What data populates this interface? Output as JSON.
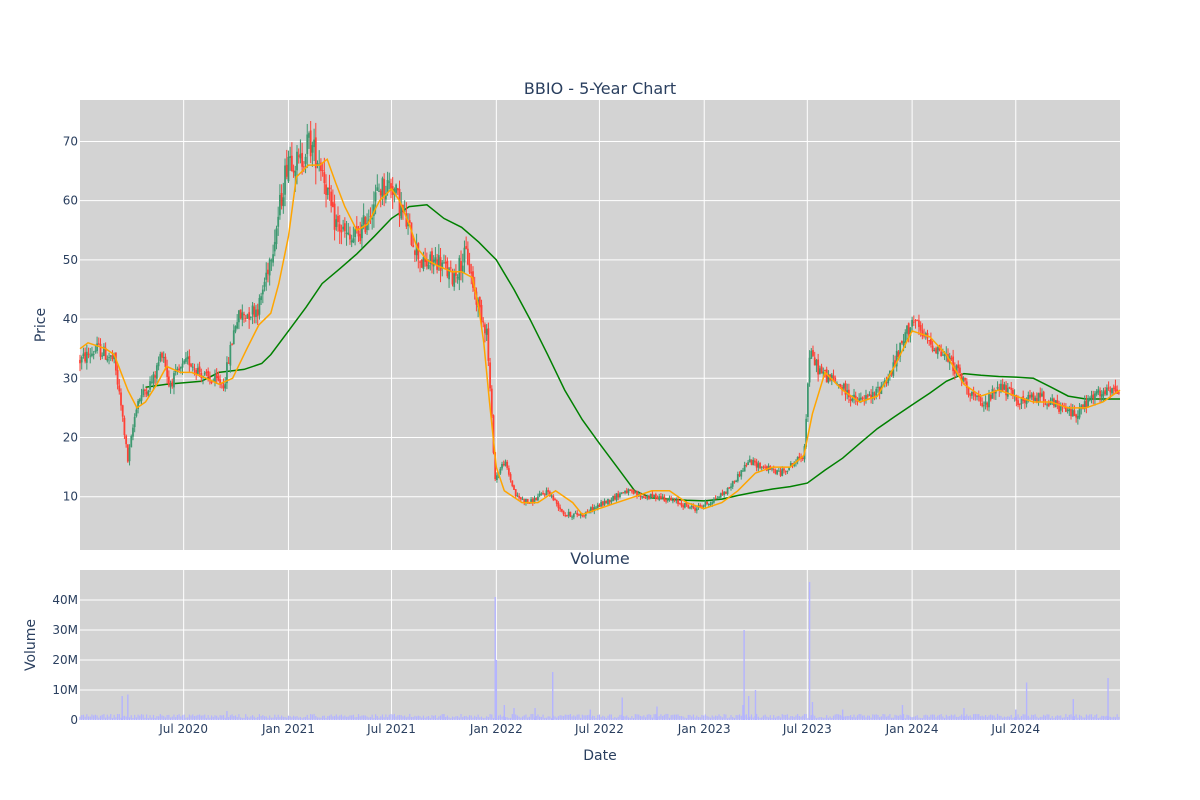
{
  "chart_data": [
    {
      "type": "candlestick",
      "title": "BBIO - 5-Year Chart",
      "xlabel": "",
      "ylabel": "Price",
      "ylim": [
        1,
        77
      ],
      "yticks": [
        10,
        20,
        30,
        40,
        50,
        60,
        70
      ],
      "grid": true,
      "legend": "none",
      "colors": {
        "background": "#d3d3d3",
        "grid": "#ffffff",
        "up": "#3d9970",
        "down": "#ff4136",
        "ma_short": "#ffa500",
        "ma_long": "#008000"
      },
      "date_range": [
        "2020-01-01",
        "2024-12-31"
      ],
      "price_path": [
        [
          "2020-01-01",
          33
        ],
        [
          "2020-02-01",
          35
        ],
        [
          "2020-03-01",
          33
        ],
        [
          "2020-03-15",
          24
        ],
        [
          "2020-03-25",
          16
        ],
        [
          "2020-04-10",
          26
        ],
        [
          "2020-05-10",
          30
        ],
        [
          "2020-05-25",
          35
        ],
        [
          "2020-06-05",
          29
        ],
        [
          "2020-07-10",
          33
        ],
        [
          "2020-08-10",
          30
        ],
        [
          "2020-09-10",
          29
        ],
        [
          "2020-10-01",
          40
        ],
        [
          "2020-11-10",
          42
        ],
        [
          "2020-12-10",
          55
        ],
        [
          "2021-01-01",
          68
        ],
        [
          "2021-01-20",
          66
        ],
        [
          "2021-02-05",
          70
        ],
        [
          "2021-03-01",
          66
        ],
        [
          "2021-03-20",
          57
        ],
        [
          "2021-04-20",
          53
        ],
        [
          "2021-05-10",
          55
        ],
        [
          "2021-06-10",
          62
        ],
        [
          "2021-07-01",
          63
        ],
        [
          "2021-07-20",
          58
        ],
        [
          "2021-08-05",
          54
        ],
        [
          "2021-08-25",
          49
        ],
        [
          "2021-09-20",
          50
        ],
        [
          "2021-10-15",
          47
        ],
        [
          "2021-11-10",
          51
        ],
        [
          "2021-11-25",
          44
        ],
        [
          "2021-12-15",
          38
        ],
        [
          "2021-12-30",
          13
        ],
        [
          "2022-01-15",
          16
        ],
        [
          "2022-02-05",
          10
        ],
        [
          "2022-03-01",
          9
        ],
        [
          "2022-04-01",
          11
        ],
        [
          "2022-05-01",
          7
        ],
        [
          "2022-06-01",
          7
        ],
        [
          "2022-07-10",
          9
        ],
        [
          "2022-08-15",
          11
        ],
        [
          "2022-09-15",
          10
        ],
        [
          "2022-10-15",
          10
        ],
        [
          "2022-11-15",
          9
        ],
        [
          "2022-12-15",
          8
        ],
        [
          "2023-01-10",
          9
        ],
        [
          "2023-02-10",
          11
        ],
        [
          "2023-03-20",
          16
        ],
        [
          "2023-04-15",
          15
        ],
        [
          "2023-05-15",
          14
        ],
        [
          "2023-06-25",
          17
        ],
        [
          "2023-07-05",
          34
        ],
        [
          "2023-07-25",
          31
        ],
        [
          "2023-08-25",
          29
        ],
        [
          "2023-09-25",
          26
        ],
        [
          "2023-10-25",
          27
        ],
        [
          "2023-11-25",
          31
        ],
        [
          "2024-01-01",
          40
        ],
        [
          "2024-01-20",
          37
        ],
        [
          "2024-02-15",
          35
        ],
        [
          "2024-03-15",
          32
        ],
        [
          "2024-04-10",
          28
        ],
        [
          "2024-05-05",
          25
        ],
        [
          "2024-06-01",
          29
        ],
        [
          "2024-06-25",
          27
        ],
        [
          "2024-07-10",
          26
        ],
        [
          "2024-08-15",
          27
        ],
        [
          "2024-09-15",
          25
        ],
        [
          "2024-10-15",
          24
        ],
        [
          "2024-11-15",
          27
        ],
        [
          "2024-12-31",
          28
        ]
      ],
      "series": [
        {
          "name": "",
          "type": "line",
          "color": "#ffa500",
          "points": [
            [
              "2020-01-01",
              35
            ],
            [
              "2020-01-15",
              36
            ],
            [
              "2020-02-15",
              35
            ],
            [
              "2020-03-01",
              34
            ],
            [
              "2020-03-25",
              28
            ],
            [
              "2020-04-10",
              25
            ],
            [
              "2020-04-25",
              26
            ],
            [
              "2020-05-15",
              29
            ],
            [
              "2020-06-01",
              32
            ],
            [
              "2020-06-25",
              31
            ],
            [
              "2020-07-15",
              31
            ],
            [
              "2020-08-10",
              30
            ],
            [
              "2020-09-01",
              29
            ],
            [
              "2020-09-25",
              30
            ],
            [
              "2020-10-20",
              35
            ],
            [
              "2020-11-10",
              39
            ],
            [
              "2020-12-01",
              41
            ],
            [
              "2020-12-15",
              46
            ],
            [
              "2021-01-01",
              54
            ],
            [
              "2021-01-15",
              64
            ],
            [
              "2021-02-05",
              66
            ],
            [
              "2021-02-25",
              66
            ],
            [
              "2021-03-10",
              67
            ],
            [
              "2021-03-25",
              63
            ],
            [
              "2021-04-10",
              59
            ],
            [
              "2021-05-01",
              55
            ],
            [
              "2021-05-20",
              56
            ],
            [
              "2021-06-10",
              60
            ],
            [
              "2021-07-01",
              62
            ],
            [
              "2021-07-15",
              60
            ],
            [
              "2021-08-01",
              56
            ],
            [
              "2021-08-15",
              52
            ],
            [
              "2021-09-01",
              50
            ],
            [
              "2021-09-20",
              49
            ],
            [
              "2021-10-15",
              48
            ],
            [
              "2021-11-01",
              48
            ],
            [
              "2021-11-20",
              47
            ],
            [
              "2021-12-01",
              42
            ],
            [
              "2021-12-10",
              36
            ],
            [
              "2021-12-20",
              26
            ],
            [
              "2022-01-01",
              15
            ],
            [
              "2022-01-15",
              11
            ],
            [
              "2022-02-15",
              9
            ],
            [
              "2022-03-15",
              9
            ],
            [
              "2022-04-15",
              11
            ],
            [
              "2022-05-15",
              9
            ],
            [
              "2022-06-01",
              7
            ],
            [
              "2022-07-01",
              8
            ],
            [
              "2022-08-01",
              9
            ],
            [
              "2022-09-01",
              10
            ],
            [
              "2022-10-01",
              11
            ],
            [
              "2022-11-01",
              11
            ],
            [
              "2022-12-01",
              9
            ],
            [
              "2023-01-01",
              8
            ],
            [
              "2023-02-01",
              9
            ],
            [
              "2023-03-01",
              11
            ],
            [
              "2023-04-01",
              14
            ],
            [
              "2023-05-01",
              15
            ],
            [
              "2023-06-01",
              15
            ],
            [
              "2023-06-25",
              17
            ],
            [
              "2023-07-10",
              24
            ],
            [
              "2023-08-01",
              31
            ],
            [
              "2023-09-01",
              28
            ],
            [
              "2023-10-01",
              26
            ],
            [
              "2023-11-01",
              27
            ],
            [
              "2023-12-01",
              32
            ],
            [
              "2024-01-01",
              38
            ],
            [
              "2024-02-01",
              37
            ],
            [
              "2024-03-01",
              34
            ],
            [
              "2024-04-01",
              29
            ],
            [
              "2024-05-01",
              27
            ],
            [
              "2024-06-01",
              28
            ],
            [
              "2024-07-01",
              27
            ],
            [
              "2024-08-01",
              26
            ],
            [
              "2024-09-01",
              26
            ],
            [
              "2024-10-01",
              25
            ],
            [
              "2024-11-01",
              25
            ],
            [
              "2024-12-01",
              26
            ],
            [
              "2024-12-31",
              28
            ]
          ]
        },
        {
          "name": "",
          "type": "line",
          "color": "#008000",
          "points": [
            [
              "2020-04-25",
              28.5
            ],
            [
              "2020-06-01",
              29
            ],
            [
              "2020-08-01",
              29.5
            ],
            [
              "2020-09-01",
              31
            ],
            [
              "2020-10-15",
              31.5
            ],
            [
              "2020-11-15",
              32.5
            ],
            [
              "2020-12-01",
              34
            ],
            [
              "2021-01-01",
              38
            ],
            [
              "2021-02-01",
              42
            ],
            [
              "2021-03-01",
              46
            ],
            [
              "2021-04-01",
              48.5
            ],
            [
              "2021-05-01",
              51
            ],
            [
              "2021-06-01",
              54
            ],
            [
              "2021-07-01",
              57
            ],
            [
              "2021-08-01",
              59
            ],
            [
              "2021-09-01",
              59.3
            ],
            [
              "2021-10-01",
              57
            ],
            [
              "2021-11-01",
              55.5
            ],
            [
              "2021-12-01",
              53
            ],
            [
              "2022-01-01",
              50
            ],
            [
              "2022-02-01",
              45
            ],
            [
              "2022-03-01",
              40
            ],
            [
              "2022-04-01",
              34
            ],
            [
              "2022-05-01",
              28
            ],
            [
              "2022-06-01",
              23
            ],
            [
              "2022-07-01",
              19
            ],
            [
              "2022-08-01",
              15
            ],
            [
              "2022-09-01",
              11
            ],
            [
              "2022-10-01",
              9.8
            ],
            [
              "2022-11-01",
              9.6
            ],
            [
              "2022-12-01",
              9.4
            ],
            [
              "2023-01-01",
              9.3
            ],
            [
              "2023-02-01",
              9.6
            ],
            [
              "2023-03-01",
              10.2
            ],
            [
              "2023-04-01",
              10.8
            ],
            [
              "2023-05-01",
              11.3
            ],
            [
              "2023-06-01",
              11.7
            ],
            [
              "2023-07-01",
              12.3
            ],
            [
              "2023-08-01",
              14.5
            ],
            [
              "2023-09-01",
              16.5
            ],
            [
              "2023-10-01",
              19
            ],
            [
              "2023-11-01",
              21.5
            ],
            [
              "2023-12-01",
              23.5
            ],
            [
              "2024-01-01",
              25.5
            ],
            [
              "2024-02-01",
              27.5
            ],
            [
              "2024-03-01",
              29.5
            ],
            [
              "2024-04-01",
              30.8
            ],
            [
              "2024-05-01",
              30.5
            ],
            [
              "2024-06-01",
              30.3
            ],
            [
              "2024-07-01",
              30.2
            ],
            [
              "2024-08-01",
              30
            ],
            [
              "2024-09-01",
              28.5
            ],
            [
              "2024-10-01",
              27
            ],
            [
              "2024-11-01",
              26.5
            ],
            [
              "2024-12-31",
              26.5
            ]
          ]
        }
      ]
    },
    {
      "type": "bar",
      "title": "Volume",
      "xlabel": "Date",
      "ylabel": "Volume",
      "ylim": [
        0,
        50000000
      ],
      "yticks": [
        0,
        10000000,
        20000000,
        30000000,
        40000000
      ],
      "yticklabels": [
        "0",
        "10M",
        "20M",
        "30M",
        "40M"
      ],
      "xticks": [
        "2020-07-01",
        "2021-01-01",
        "2021-07-01",
        "2022-01-01",
        "2022-07-01",
        "2023-01-01",
        "2023-07-01",
        "2024-01-01",
        "2024-07-01"
      ],
      "xticklabels": [
        "Jul 2020",
        "Jan 2021",
        "Jul 2021",
        "Jan 2022",
        "Jul 2022",
        "Jan 2023",
        "Jul 2023",
        "Jan 2024",
        "Jul 2024"
      ],
      "grid": true,
      "colors": {
        "bar": "#b4b4ff",
        "background": "#d3d3d3"
      },
      "spikes": [
        [
          "2020-03-15",
          8000000
        ],
        [
          "2020-03-25",
          8500000
        ],
        [
          "2020-09-15",
          3000000
        ],
        [
          "2021-10-01",
          2000000
        ],
        [
          "2021-12-30",
          41000000
        ],
        [
          "2022-01-01",
          20000000
        ],
        [
          "2022-01-15",
          5000000
        ],
        [
          "2022-02-01",
          4000000
        ],
        [
          "2022-03-10",
          4000000
        ],
        [
          "2022-04-10",
          16000000
        ],
        [
          "2022-06-15",
          3500000
        ],
        [
          "2022-08-10",
          7500000
        ],
        [
          "2022-10-10",
          4500000
        ],
        [
          "2023-03-10",
          5000000
        ],
        [
          "2023-03-12",
          30000000
        ],
        [
          "2023-03-20",
          8000000
        ],
        [
          "2023-04-01",
          10000000
        ],
        [
          "2023-07-05",
          46000000
        ],
        [
          "2023-07-10",
          6000000
        ],
        [
          "2023-09-01",
          3500000
        ],
        [
          "2023-12-15",
          5000000
        ],
        [
          "2024-04-01",
          4000000
        ],
        [
          "2024-07-01",
          3500000
        ],
        [
          "2024-07-20",
          12500000
        ],
        [
          "2024-10-10",
          7000000
        ],
        [
          "2024-12-10",
          14000000
        ]
      ],
      "baseline_volume": 1200000
    }
  ]
}
